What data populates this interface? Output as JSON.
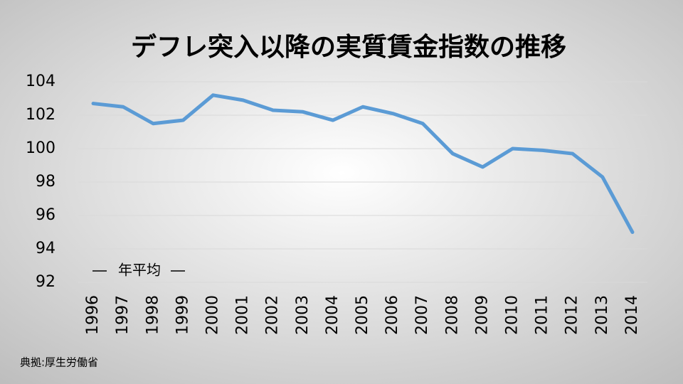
{
  "chart_data": {
    "type": "line",
    "title": "デフレ突入以降の実質賃金指数の推移",
    "categories": [
      "1996",
      "1997",
      "1998",
      "1999",
      "2000",
      "2001",
      "2002",
      "2003",
      "2004",
      "2005",
      "2006",
      "2007",
      "2008",
      "2009",
      "2010",
      "2011",
      "2012",
      "2013",
      "2014"
    ],
    "series": [
      {
        "name": "年平均",
        "color": "#5b9bd5",
        "values": [
          102.7,
          102.5,
          101.5,
          101.7,
          103.2,
          102.9,
          102.3,
          102.2,
          101.7,
          102.5,
          102.1,
          101.5,
          99.7,
          98.9,
          100.0,
          99.9,
          99.7,
          98.3,
          95.0
        ]
      }
    ],
    "ylim": [
      92,
      104
    ],
    "yticks": [
      92,
      94,
      96,
      98,
      100,
      102,
      104
    ],
    "grid": true,
    "legend": "lower left",
    "source": "典拠:厚生労働省"
  }
}
